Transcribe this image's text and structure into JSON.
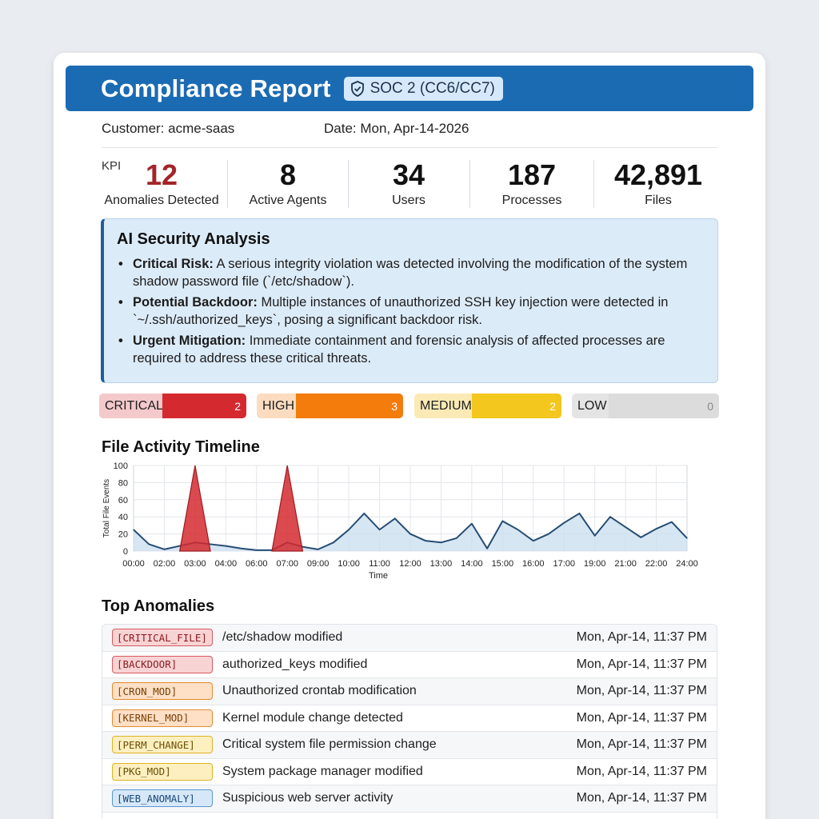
{
  "report": {
    "title": "Compliance Report",
    "badge": "SOC 2 (CC6/CC7)",
    "customer": "Customer: acme-saas",
    "date": "Date: Mon, Apr-14-2026"
  },
  "kpis": {
    "tag": "KPI",
    "items": [
      {
        "value": "12",
        "label": "Anomalies Detected",
        "color": "#a3252a"
      },
      {
        "value": "8",
        "label": "Active Agents",
        "color": "#111111"
      },
      {
        "value": "34",
        "label": "Users",
        "color": "#111111"
      },
      {
        "value": "187",
        "label": "Processes",
        "color": "#111111"
      },
      {
        "value": "42,891",
        "label": "Files",
        "color": "#111111"
      }
    ]
  },
  "ai_analysis": {
    "title": "AI Security Analysis",
    "items": [
      {
        "label": "Critical Risk:",
        "text": " A serious integrity violation was detected involving the modification of the system shadow password file (`/etc/shadow`)."
      },
      {
        "label": "Potential Backdoor:",
        "text": " Multiple instances of unauthorized SSH key injection were detected in `~/.ssh/authorized_keys`, posing a significant backdoor risk."
      },
      {
        "label": "Urgent Mitigation:",
        "text": " Immediate containment and forensic analysis of affected processes are required to address these critical threats."
      }
    ]
  },
  "severity": [
    {
      "name": "CRITICAL",
      "count": "2",
      "light": "#f4c9cb",
      "dark": "#d42a2f"
    },
    {
      "name": "HIGH",
      "count": "3",
      "light": "#fbdcc0",
      "dark": "#f47c0c"
    },
    {
      "name": "MEDIUM",
      "count": "2",
      "light": "#fbeab6",
      "dark": "#f3c71d"
    },
    {
      "name": "LOW",
      "count": "0",
      "light": "#e4e4e4",
      "dark": "#dcdcdc"
    }
  ],
  "timeline_title": "File Activity Timeline",
  "chart_data": {
    "type": "area",
    "xlabel": "Time",
    "ylabel": "Total File Events",
    "ylim": [
      0,
      100
    ],
    "yticks": [
      0,
      20,
      40,
      60,
      80,
      100
    ],
    "x_tick_labels": [
      "00:00",
      "02:00",
      "03:00",
      "04:00",
      "06:00",
      "07:00",
      "09:00",
      "10:00",
      "11:00",
      "12:00",
      "13:00",
      "14:00",
      "15:00",
      "16:00",
      "17:00",
      "19:00",
      "21:00",
      "22:00",
      "24:00"
    ],
    "x_hours": [
      0,
      1,
      2,
      3,
      4,
      5,
      6,
      7,
      8,
      9,
      10,
      11,
      12,
      13,
      14,
      15,
      16,
      17,
      18,
      19,
      20,
      21,
      22,
      23,
      24,
      25,
      26,
      27,
      28,
      29,
      30,
      31,
      32,
      33,
      34,
      35,
      36
    ],
    "series": [
      {
        "values": [
          25,
          8,
          2,
          6,
          10,
          8,
          6,
          3,
          1,
          1,
          10,
          5,
          2,
          10,
          25,
          44,
          25,
          38,
          20,
          12,
          10,
          15,
          32,
          3,
          35,
          25,
          12,
          20,
          33,
          44,
          18,
          40,
          28,
          16,
          26,
          34,
          15
        ]
      }
    ],
    "spikes": [
      {
        "start": 3,
        "peak": 4,
        "end": 5,
        "value": 100,
        "color": "#d42a2f"
      },
      {
        "start": 9,
        "peak": 10,
        "end": 11,
        "value": 100,
        "color": "#d42a2f"
      }
    ]
  },
  "anomalies_title": "Top Anomalies",
  "anomalies": [
    {
      "tag": "[CRITICAL_FILE]",
      "desc": "/etc/shadow modified",
      "time": "Mon, Apr-14, 11:37 PM",
      "bg": "#f8d3d4",
      "border": "#d65b60",
      "text": "#8b1b1f"
    },
    {
      "tag": "[BACKDOOR]",
      "desc": "authorized_keys modified",
      "time": "Mon, Apr-14, 11:37 PM",
      "bg": "#f8d3d4",
      "border": "#d65b60",
      "text": "#8b1b1f"
    },
    {
      "tag": "[CRON_MOD]",
      "desc": "Unauthorized crontab modification",
      "time": "Mon, Apr-14, 11:37 PM",
      "bg": "#fde0c6",
      "border": "#e58a33",
      "text": "#7a3f05"
    },
    {
      "tag": "[KERNEL_MOD]",
      "desc": "Kernel module change detected",
      "time": "Mon, Apr-14, 11:37 PM",
      "bg": "#fde0c6",
      "border": "#e58a33",
      "text": "#7a3f05"
    },
    {
      "tag": "[PERM_CHANGE]",
      "desc": "Critical system file permission change",
      "time": "Mon, Apr-14, 11:37 PM",
      "bg": "#fdefc0",
      "border": "#e0b224",
      "text": "#6b5004"
    },
    {
      "tag": "[PKG_MOD]",
      "desc": "System package manager modified",
      "time": "Mon, Apr-14, 11:37 PM",
      "bg": "#fdefc0",
      "border": "#e0b224",
      "text": "#6b5004"
    },
    {
      "tag": "[WEB_ANOMALY]",
      "desc": "Suspicious web server activity",
      "time": "Mon, Apr-14, 11:37 PM",
      "bg": "#d6e8f8",
      "border": "#5b95cf",
      "text": "#1b4878"
    }
  ]
}
